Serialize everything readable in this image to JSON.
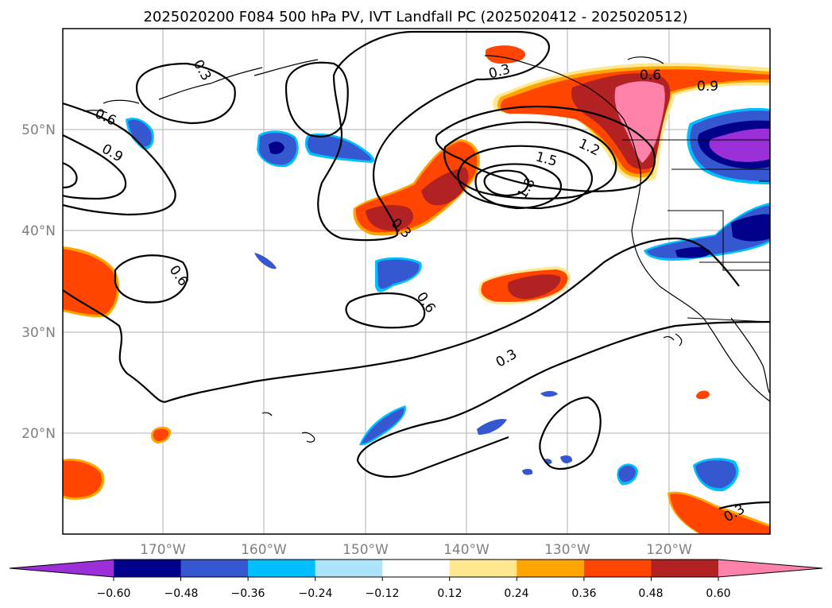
{
  "title": "2025020200 F084 500 hPa PV, IVT Landfall PC (2025020412 - 2025020512)",
  "lon_ticks": [
    "170°W",
    "160°W",
    "150°W",
    "140°W",
    "130°W",
    "120°W"
  ],
  "lat_ticks": [
    "50°N",
    "40°N",
    "30°N",
    "20°N"
  ],
  "map_extent": {
    "lon": [
      -180,
      -110
    ],
    "lat": [
      10,
      60
    ]
  },
  "gridlines": true,
  "colorbar": {
    "extend": "both",
    "tick_labels": [
      "−0.60",
      "−0.48",
      "−0.36",
      "−0.24",
      "−0.12",
      "0.12",
      "0.24",
      "0.36",
      "0.48",
      "0.60"
    ],
    "colors": [
      "#9b30d9",
      "#00008b",
      "#3557cf",
      "#00bfff",
      "#ace4fa",
      "#ffffff",
      "#ffe88f",
      "#ffa500",
      "#ff4500",
      "#b22222",
      "#ff82ab"
    ]
  },
  "contour_labels": [
    "0.3",
    "0.6",
    "0.9",
    "0.3",
    "0.6",
    "0.9",
    "1.2",
    "1.5",
    "1.8",
    "0.3",
    "0.6",
    "0.6",
    "0.3",
    "0.3"
  ]
}
